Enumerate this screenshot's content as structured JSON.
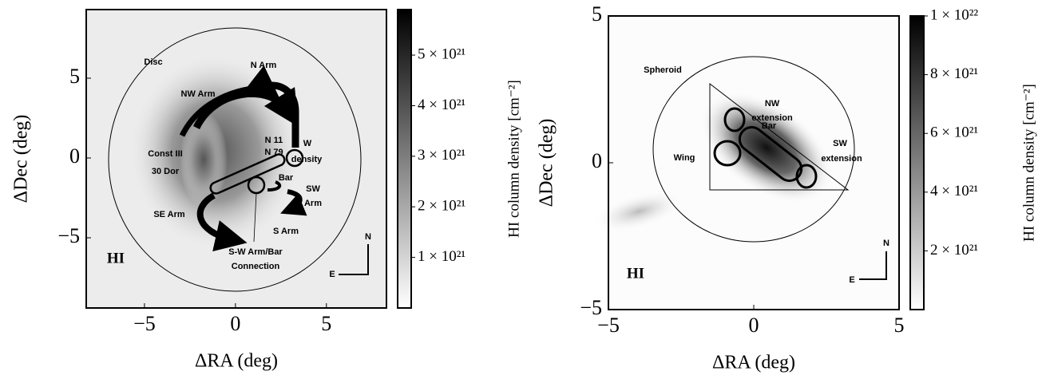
{
  "chart_data": [
    {
      "type": "image",
      "xlabel": "ΔRA (deg)",
      "ylabel": "ΔDec (deg)",
      "xlim": [
        -8.2,
        8.3
      ],
      "ylim": [
        -9.4,
        9.3
      ],
      "xticks": [
        {
          "value": -5,
          "label": "−5"
        },
        0,
        5
      ],
      "yticks": [
        {
          "value": -5,
          "label": "−5"
        },
        0,
        5
      ],
      "clabel": "HI column density [cm⁻²]",
      "clim": [
        0,
        5.9e+21
      ],
      "cticks": [
        {
          "value": 1e+21,
          "label": "1 × 10²¹"
        },
        {
          "value": 2e+21,
          "label": "2 × 10²¹"
        },
        {
          "value": 3e+21,
          "label": "3 × 10²¹"
        },
        {
          "value": 4e+21,
          "label": "4 × 10²¹"
        },
        {
          "value": 5e+21,
          "label": "5 × 10²¹"
        }
      ],
      "annotations": [
        "Disc",
        "N Arm",
        "NW Arm",
        "Const III",
        "30 Dor",
        "N 11",
        "N 79",
        "W",
        "density",
        "Bar",
        "SW",
        "Arm",
        "SE Arm",
        "S Arm",
        "S-W Arm/Bar",
        "Connection",
        "HI",
        "N",
        "E"
      ]
    },
    {
      "type": "image",
      "xlabel": "ΔRA (deg)",
      "ylabel": "ΔDec (deg)",
      "xlim": [
        -5,
        5
      ],
      "ylim": [
        -5,
        5
      ],
      "xticks": [
        {
          "value": -5,
          "label": "−5"
        },
        0,
        5
      ],
      "yticks": [
        {
          "value": -5,
          "label": "−5"
        },
        0,
        5
      ],
      "clabel": "HI column density [cm⁻²]",
      "clim": [
        0,
        1e+22
      ],
      "cticks": [
        {
          "value": 2e+21,
          "label": "2 × 10²¹"
        },
        {
          "value": 4e+21,
          "label": "4 × 10²¹"
        },
        {
          "value": 6e+21,
          "label": "6 × 10²¹"
        },
        {
          "value": 8e+21,
          "label": "8 × 10²¹"
        },
        {
          "value": 1e+22,
          "label": "1 × 10²²"
        }
      ],
      "annotations": [
        "Spheroid",
        "NW",
        "extension",
        "Bar",
        "SW",
        "extension",
        "Wing",
        "HI",
        "N",
        "E"
      ]
    }
  ]
}
